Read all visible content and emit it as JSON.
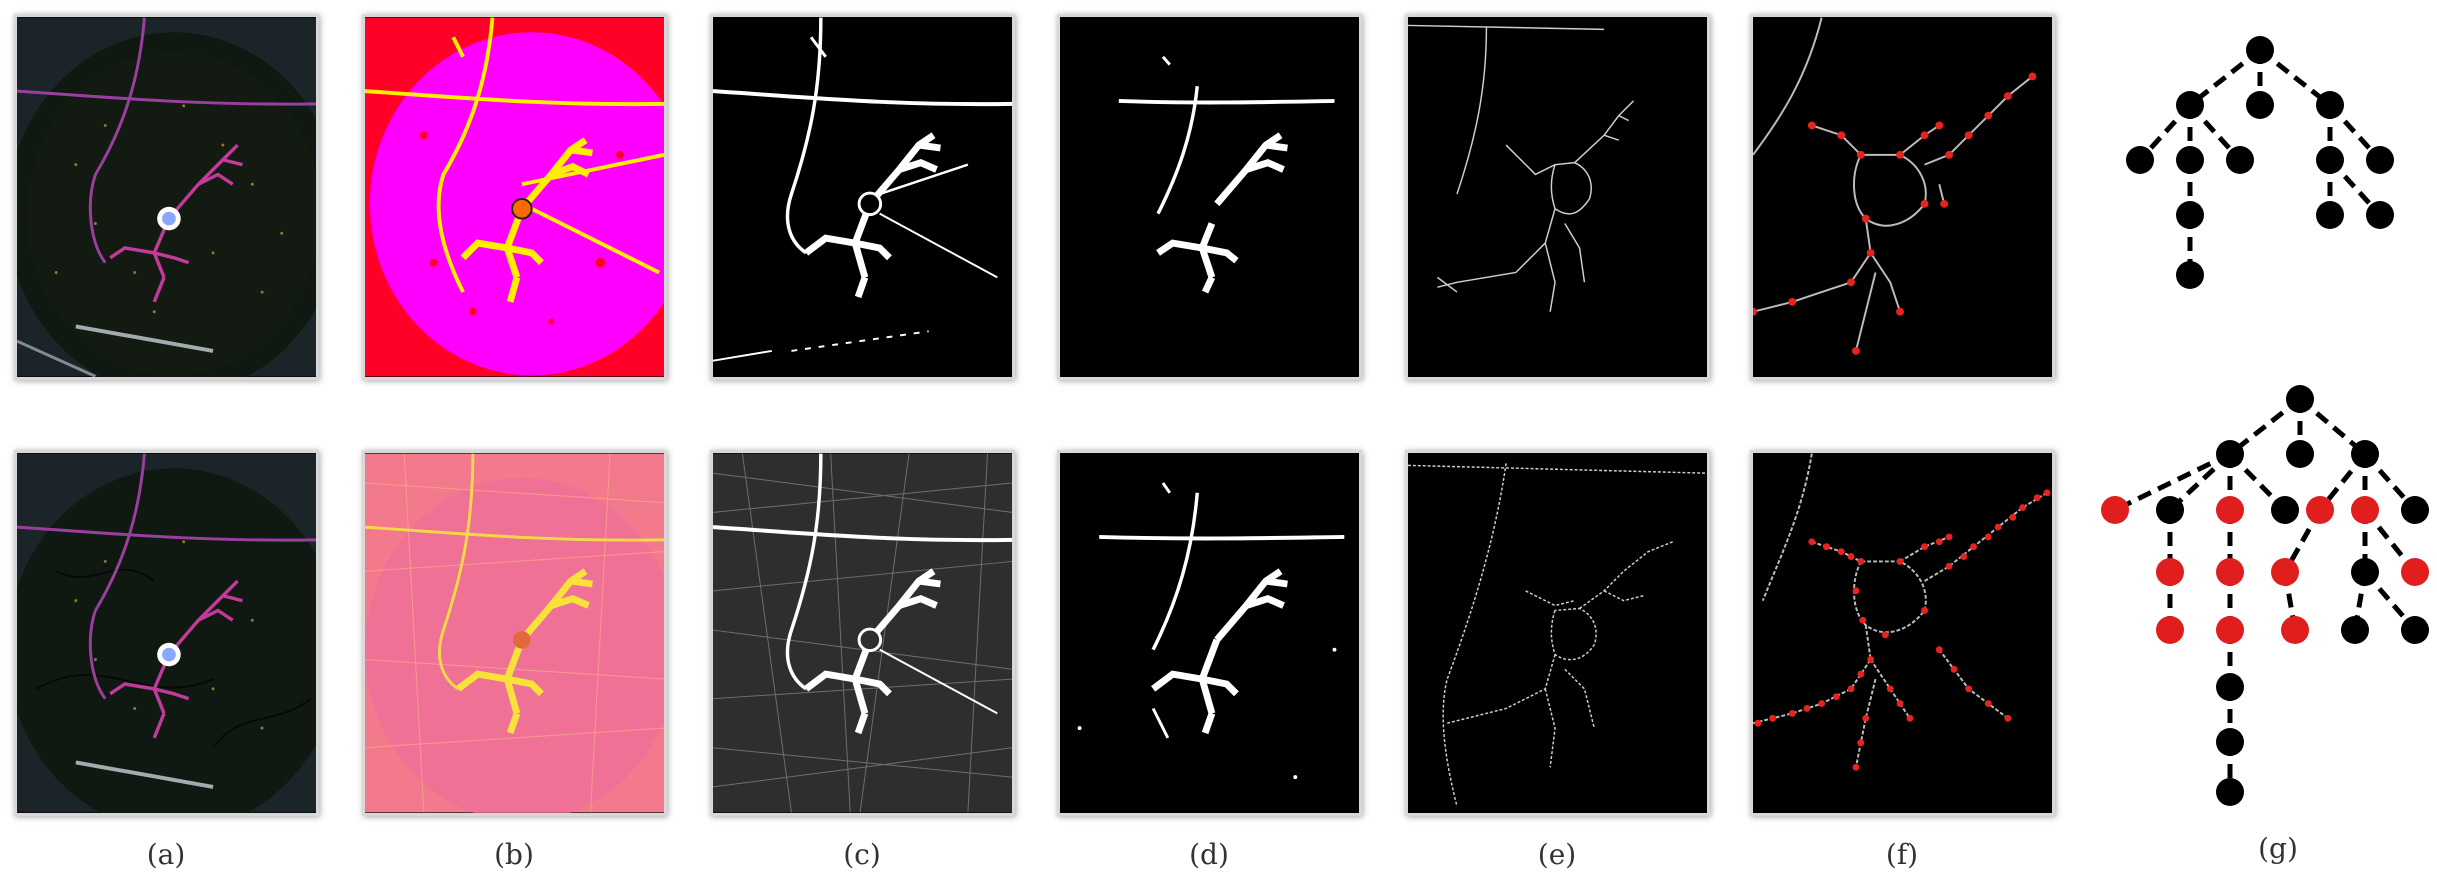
{
  "figure": {
    "panel_labels": [
      "(a)",
      "(b)",
      "(c)",
      "(d)",
      "(e)",
      "(f)",
      "(g)"
    ]
  },
  "colors": {
    "neuron_magenta": "#b0307f",
    "threshold_magenta": "#ff00ff",
    "threshold_red": "#ff0026",
    "threshold_yellow": "#ffee00",
    "soma_blue": "#8aa6ff",
    "tree_node_black": "#000000",
    "tree_node_red": "#e01e1e",
    "endpoint_red": "#e8231e"
  },
  "icons": [
    "tree-graph-top",
    "tree-graph-bottom"
  ]
}
